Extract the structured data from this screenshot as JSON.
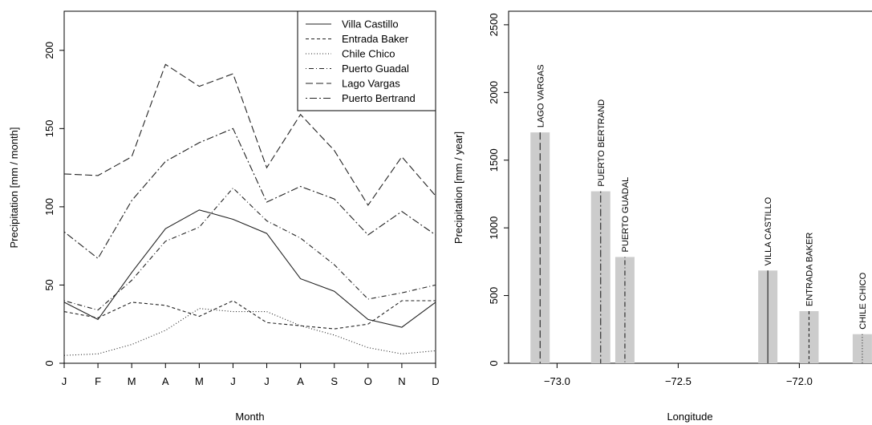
{
  "chart_data": [
    {
      "type": "line",
      "title": "",
      "xlabel": "Month",
      "ylabel": "Precipitation [mm / month]",
      "categories": [
        "J",
        "F",
        "M",
        "A",
        "M",
        "J",
        "J",
        "A",
        "S",
        "O",
        "N",
        "D"
      ],
      "yticks": [
        0,
        50,
        100,
        150,
        200
      ],
      "ylim": [
        0,
        225
      ],
      "legend_position": "top-right",
      "series": [
        {
          "name": "Villa Castillo",
          "dash": "solid",
          "values": [
            39,
            28,
            58,
            86,
            98,
            92,
            83,
            54,
            46,
            28,
            23,
            39
          ]
        },
        {
          "name": "Entrada Baker",
          "dash": "dashed-short",
          "values": [
            33,
            29,
            39,
            37,
            30,
            40,
            26,
            24,
            22,
            25,
            40,
            40
          ]
        },
        {
          "name": "Chile Chico",
          "dash": "dotted",
          "values": [
            5,
            6,
            12,
            21,
            35,
            33,
            33,
            24,
            18,
            10,
            6,
            8
          ]
        },
        {
          "name": "Puerto Guadal",
          "dash": "dotdash",
          "values": [
            40,
            34,
            53,
            78,
            87,
            112,
            91,
            80,
            63,
            41,
            45,
            50
          ]
        },
        {
          "name": "Lago Vargas",
          "dash": "longdash",
          "values": [
            121,
            120,
            132,
            191,
            177,
            185,
            125,
            159,
            136,
            101,
            132,
            107
          ]
        },
        {
          "name": "Puerto Bertrand",
          "dash": "twodash",
          "values": [
            84,
            67,
            104,
            129,
            141,
            150,
            103,
            113,
            105,
            82,
            97,
            82
          ]
        }
      ]
    },
    {
      "type": "bar",
      "title": "",
      "xlabel": "Longitude",
      "ylabel": "Precipitation [mm / year]",
      "xticks": [
        -73.0,
        -72.5,
        -72.0
      ],
      "xtick_labels": [
        "−73.0",
        "−72.5",
        "−72.0"
      ],
      "yticks": [
        0,
        500,
        1000,
        1500,
        2000,
        2500
      ],
      "ylim": [
        0,
        2600
      ],
      "bar_color": "#cccccc",
      "bars": [
        {
          "label": "LAGO VARGAS",
          "x": -73.07,
          "value": 1705,
          "dash": "longdash"
        },
        {
          "label": "PUERTO BERTRAND",
          "x": -72.82,
          "value": 1270,
          "dash": "twodash"
        },
        {
          "label": "PUERTO GUADAL",
          "x": -72.72,
          "value": 785,
          "dash": "dotdash"
        },
        {
          "label": "VILLA CASTILLO",
          "x": -72.13,
          "value": 685,
          "dash": "solid"
        },
        {
          "label": "ENTRADA BAKER",
          "x": -71.96,
          "value": 385,
          "dash": "dashed-short"
        },
        {
          "label": "CHILE CHICO",
          "x": -71.74,
          "value": 215,
          "dash": "dotted"
        }
      ]
    }
  ]
}
